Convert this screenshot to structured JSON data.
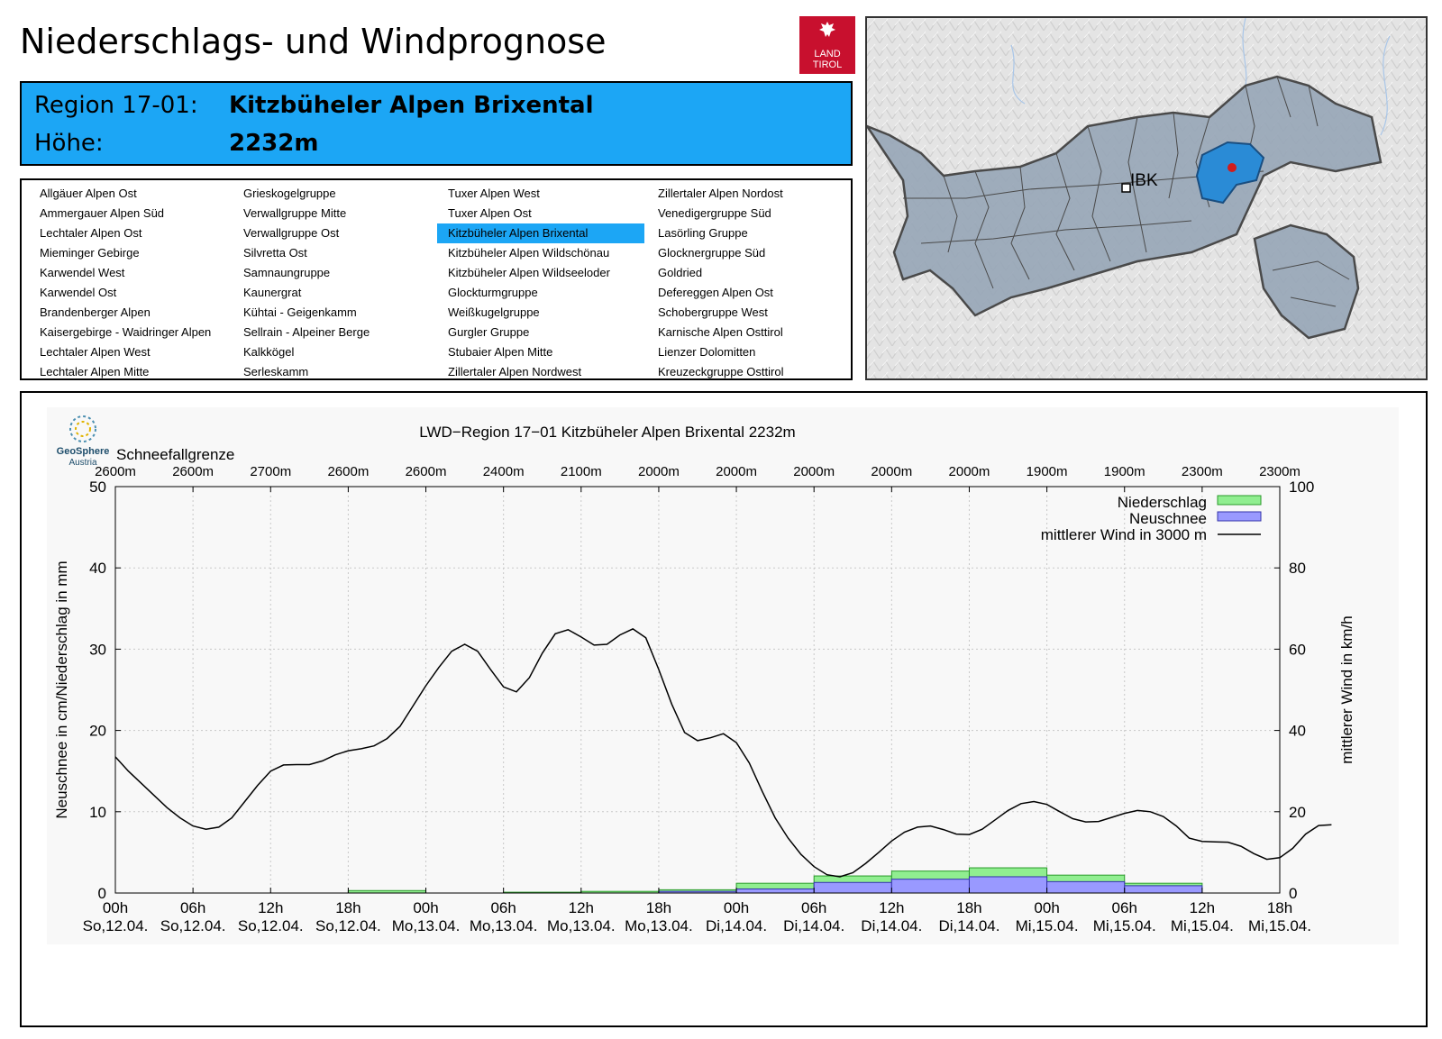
{
  "header": {
    "title": "Niederschlags- und Windprognose",
    "logo_line1": "LAND",
    "logo_line2": "TIROL"
  },
  "region": {
    "label": "Region 17-01:",
    "name": "Kitzbüheler Alpen Brixental",
    "height_label": "Höhe:",
    "height": "2232m"
  },
  "regions_list": {
    "columns": [
      [
        "Allgäuer Alpen Ost",
        "Ammergauer Alpen Süd",
        "Lechtaler Alpen Ost",
        "Mieminger Gebirge",
        "Karwendel West",
        "Karwendel Ost",
        "Brandenberger Alpen",
        "Kaisergebirge - Waidringer Alpen",
        "Lechtaler Alpen West",
        "Lechtaler Alpen Mitte"
      ],
      [
        "Grieskogelgruppe",
        "Verwallgruppe Mitte",
        "Verwallgruppe Ost",
        "Silvretta Ost",
        "Samnaungruppe",
        "Kaunergrat",
        "Kühtai - Geigenkamm",
        "Sellrain - Alpeiner Berge",
        "Kalkkögel",
        "Serleskamm"
      ],
      [
        "Tuxer Alpen West",
        "Tuxer Alpen Ost",
        "Kitzbüheler Alpen Brixental",
        "Kitzbüheler Alpen Wildschönau",
        "Kitzbüheler Alpen Wildseeloder",
        "Glockturmgruppe",
        "Weißkugelgruppe",
        "Gurgler Gruppe",
        "Stubaier Alpen Mitte",
        "Zillertaler Alpen Nordwest"
      ],
      [
        "Zillertaler Alpen Nordost",
        "Venedigergruppe Süd",
        "Lasörling Gruppe",
        "Glocknergruppe Süd",
        "Goldried",
        "Defereggen Alpen Ost",
        "Schobergruppe West",
        "Karnische Alpen Osttirol",
        "Lienzer Dolomitten",
        "Kreuzeckgruppe Osttirol"
      ]
    ],
    "selected": "Kitzbüheler Alpen Brixental"
  },
  "map": {
    "city_label": "IBK"
  },
  "chart_data": {
    "type": "bar+line",
    "title": "LWD−Region 17−01 Kitzbüheler Alpen Brixental 2232m",
    "source_logo": "GeoSphere",
    "source_logo_sub": "Austria",
    "snowline_title": "Schneefallgrenze",
    "snowline": [
      "2600m",
      "2600m",
      "2700m",
      "2600m",
      "2600m",
      "2400m",
      "2100m",
      "2000m",
      "2000m",
      "2000m",
      "2000m",
      "2000m",
      "1900m",
      "1900m",
      "2300m",
      "2300m"
    ],
    "ylabel_left": "Neuschnee in cm/Niederschlag in mm",
    "ylabel_right": "mittlerer Wind in km/h",
    "ylim_left": [
      0,
      50
    ],
    "ylim_right": [
      0,
      100
    ],
    "yticks_left": [
      "0",
      "10",
      "20",
      "30",
      "40",
      "50"
    ],
    "yticks_right": [
      "0",
      "20",
      "40",
      "60",
      "80",
      "100"
    ],
    "x_ticks_hours": [
      "00h",
      "06h",
      "12h",
      "18h",
      "00h",
      "06h",
      "12h",
      "18h",
      "00h",
      "06h",
      "12h",
      "18h",
      "00h",
      "06h",
      "12h",
      "18h"
    ],
    "x_ticks_days": [
      "So,12.04.",
      "So,12.04.",
      "So,12.04.",
      "So,12.04.",
      "Mo,13.04.",
      "Mo,13.04.",
      "Mo,13.04.",
      "Mo,13.04.",
      "Di,14.04.",
      "Di,14.04.",
      "Di,14.04.",
      "Di,14.04.",
      "Mi,15.04.",
      "Mi,15.04.",
      "Mi,15.04.",
      "Mi,15.04."
    ],
    "legend": {
      "niederschlag": "Niederschlag",
      "neuschnee": "Neuschnee",
      "wind": "mittlerer Wind in 3000 m",
      "position": "top-right"
    },
    "colors": {
      "niederschlag": "#90ee90",
      "neuschnee": "#9999ff",
      "wind": "#000000",
      "plot_bg": "#f8f8f8",
      "grid": "#c8c8c8"
    },
    "x_unit": "hours from So,12.04. 00h",
    "niederschlag": [
      {
        "x0": 0,
        "x1": 6,
        "value": 0.0
      },
      {
        "x0": 6,
        "x1": 12,
        "value": 0.0
      },
      {
        "x0": 12,
        "x1": 18,
        "value": 0.0
      },
      {
        "x0": 18,
        "x1": 24,
        "value": 0.3
      },
      {
        "x0": 24,
        "x1": 30,
        "value": 0.0
      },
      {
        "x0": 30,
        "x1": 36,
        "value": 0.1
      },
      {
        "x0": 36,
        "x1": 42,
        "value": 0.2
      },
      {
        "x0": 42,
        "x1": 48,
        "value": 0.4
      },
      {
        "x0": 48,
        "x1": 54,
        "value": 1.2
      },
      {
        "x0": 54,
        "x1": 60,
        "value": 2.1
      },
      {
        "x0": 60,
        "x1": 66,
        "value": 2.7
      },
      {
        "x0": 66,
        "x1": 72,
        "value": 3.1
      },
      {
        "x0": 72,
        "x1": 78,
        "value": 2.2
      },
      {
        "x0": 78,
        "x1": 84,
        "value": 1.2
      },
      {
        "x0": 84,
        "x1": 90,
        "value": 0.0
      },
      {
        "x0": 90,
        "x1": 96,
        "value": 0.0
      }
    ],
    "neuschnee": [
      {
        "x0": 42,
        "x1": 48,
        "value": 0.2
      },
      {
        "x0": 48,
        "x1": 54,
        "value": 0.5
      },
      {
        "x0": 54,
        "x1": 60,
        "value": 1.3
      },
      {
        "x0": 60,
        "x1": 66,
        "value": 1.7
      },
      {
        "x0": 66,
        "x1": 72,
        "value": 2.0
      },
      {
        "x0": 72,
        "x1": 78,
        "value": 1.4
      },
      {
        "x0": 78,
        "x1": 84,
        "value": 0.9
      }
    ],
    "wind": [
      [
        0,
        33.5
      ],
      [
        1,
        30
      ],
      [
        2,
        27
      ],
      [
        3,
        24
      ],
      [
        4,
        21
      ],
      [
        5,
        18.5
      ],
      [
        6,
        16.5
      ],
      [
        7,
        15.7
      ],
      [
        8,
        16.2
      ],
      [
        9,
        18.5
      ],
      [
        10,
        22.5
      ],
      [
        11,
        26.5
      ],
      [
        12,
        30
      ],
      [
        13,
        31.5
      ],
      [
        14,
        31.6
      ],
      [
        15,
        31.6
      ],
      [
        16,
        32.5
      ],
      [
        17,
        34
      ],
      [
        18,
        35
      ],
      [
        19,
        35.5
      ],
      [
        20,
        36.2
      ],
      [
        21,
        38
      ],
      [
        22,
        41
      ],
      [
        23,
        46
      ],
      [
        24,
        51
      ],
      [
        25,
        55.5
      ],
      [
        26,
        59.5
      ],
      [
        27,
        61.2
      ],
      [
        28,
        59.5
      ],
      [
        29,
        55
      ],
      [
        30,
        50.7
      ],
      [
        31,
        49.5
      ],
      [
        32,
        53
      ],
      [
        33,
        59
      ],
      [
        34,
        63.8
      ],
      [
        35,
        64.8
      ],
      [
        36,
        63
      ],
      [
        37,
        61
      ],
      [
        38,
        61.2
      ],
      [
        39,
        63.5
      ],
      [
        40,
        65
      ],
      [
        41,
        62.8
      ],
      [
        42,
        55
      ],
      [
        43,
        46.5
      ],
      [
        44,
        39.5
      ],
      [
        45,
        37.5
      ],
      [
        46,
        38.2
      ],
      [
        47,
        39.2
      ],
      [
        48,
        37
      ],
      [
        49,
        32
      ],
      [
        50,
        25
      ],
      [
        51,
        18.5
      ],
      [
        52,
        13.5
      ],
      [
        53,
        9.5
      ],
      [
        54,
        6.5
      ],
      [
        55,
        4.5
      ],
      [
        56,
        4
      ],
      [
        57,
        5
      ],
      [
        58,
        7.3
      ],
      [
        59,
        10
      ],
      [
        60,
        12.8
      ],
      [
        61,
        15
      ],
      [
        62,
        16.2
      ],
      [
        63,
        16.5
      ],
      [
        64,
        15.6
      ],
      [
        65,
        14.5
      ],
      [
        66,
        14.4
      ],
      [
        67,
        15.7
      ],
      [
        68,
        18
      ],
      [
        69,
        20.3
      ],
      [
        70,
        22
      ],
      [
        71,
        22.5
      ],
      [
        72,
        21.8
      ],
      [
        73,
        20
      ],
      [
        74,
        18.3
      ],
      [
        75,
        17.5
      ],
      [
        76,
        17.6
      ],
      [
        77,
        18.6
      ],
      [
        78,
        19.6
      ],
      [
        79,
        20.3
      ],
      [
        80,
        20
      ],
      [
        81,
        18.8
      ],
      [
        82,
        16.5
      ],
      [
        83,
        13.5
      ],
      [
        84,
        12.7
      ],
      [
        85,
        12.6
      ],
      [
        86,
        12.5
      ],
      [
        87,
        11.5
      ],
      [
        88,
        9.7
      ],
      [
        89,
        8.3
      ],
      [
        90,
        8.7
      ],
      [
        91,
        11
      ],
      [
        92,
        14.5
      ],
      [
        93,
        16.6
      ],
      [
        94,
        16.8
      ]
    ],
    "grid": true
  }
}
